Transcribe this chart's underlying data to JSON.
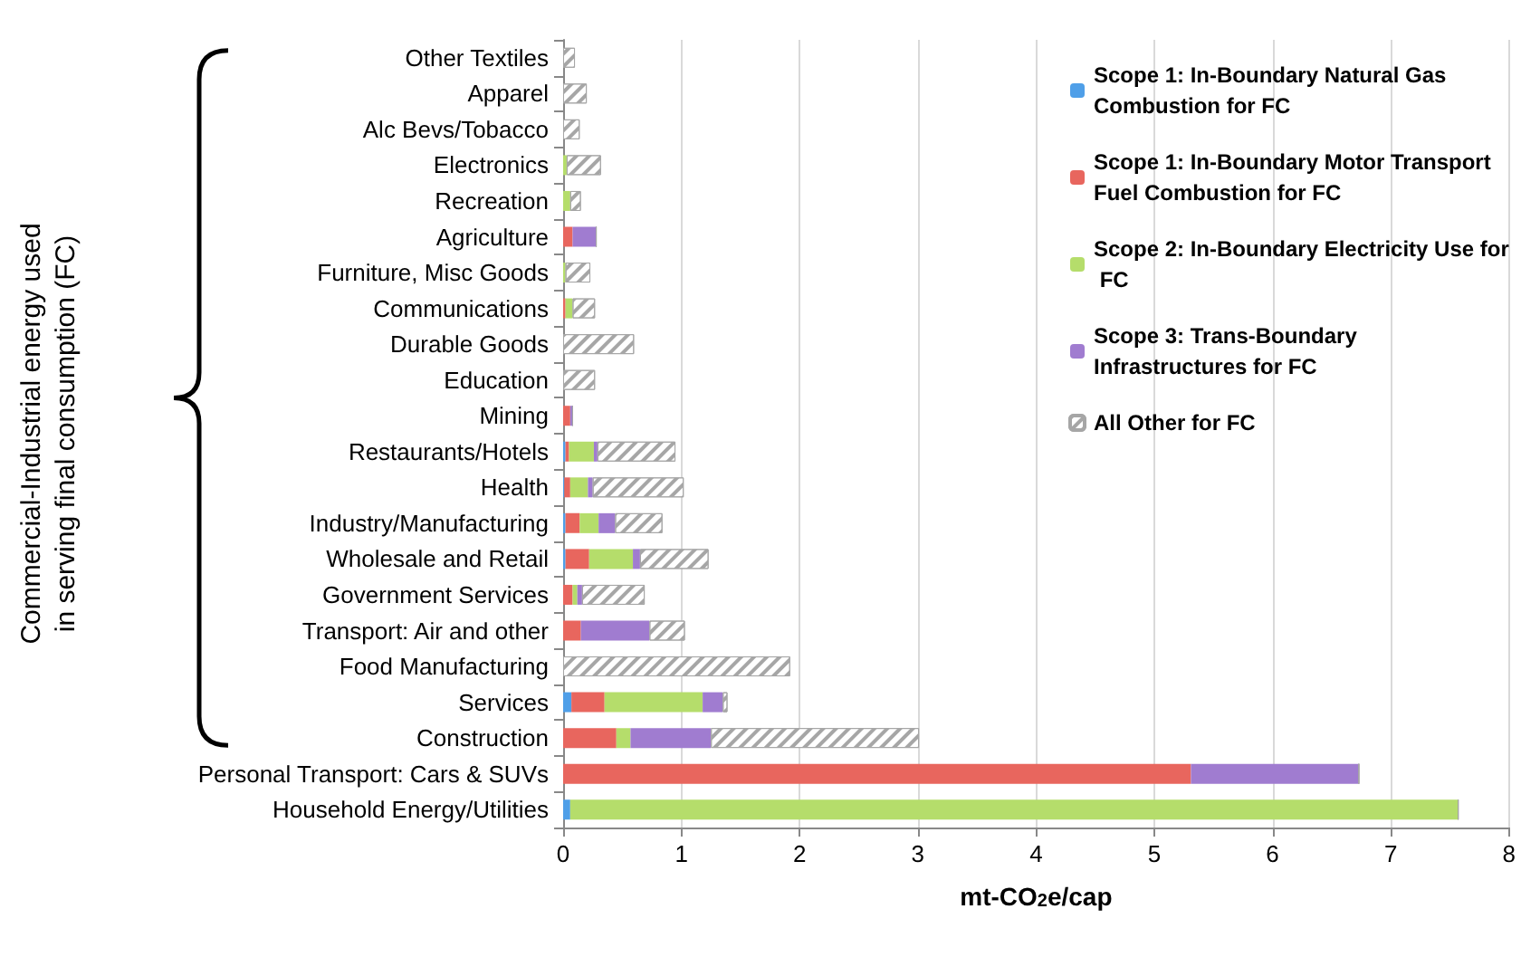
{
  "chart_data": {
    "type": "bar",
    "orientation": "horizontal",
    "stacked": true,
    "xlabel": "mt-CO$_{2}$e/cap",
    "ylabel": "Commercial-Industrial energy used in serving final consumption (FC)",
    "categories": [
      "Other Textiles",
      "Apparel",
      "Alc Bevs/Tobacco",
      "Electronics",
      "Recreation",
      "Agriculture",
      "Furniture, Misc Goods",
      "Communications",
      "Durable Goods",
      "Education",
      "Mining",
      "Restaurants/Hotels",
      "Health",
      "Industry/Manufacturing",
      "Wholesale and Retail",
      "Government Services",
      "Transport: Air and other",
      "Food Manufacturing",
      "Services",
      "Construction",
      "Personal Transport: Cars & SUVs",
      "Household Energy/Utilities"
    ],
    "series": [
      {
        "name": "Scope 1: In-Boundary Natural Gas Combustion for FC",
        "color": "#4f9fe8",
        "values": [
          0,
          0,
          0,
          0,
          0,
          0,
          0,
          0,
          0,
          0,
          0,
          0.02,
          0.01,
          0.02,
          0.02,
          0,
          0,
          0,
          0.07,
          0,
          0,
          0.06
        ]
      },
      {
        "name": "Scope 1: In-Boundary Motor Transport Fuel Combustion for FC",
        "color": "#e8665e",
        "values": [
          0,
          0,
          0,
          0,
          0,
          0.08,
          0,
          0.02,
          0,
          0,
          0.06,
          0.03,
          0.05,
          0.12,
          0.2,
          0.08,
          0.15,
          0,
          0.28,
          0.45,
          5.31,
          0
        ]
      },
      {
        "name": "Scope 2: In-Boundary Electricity Use for FC",
        "color": "#b5dd6b",
        "values": [
          0,
          0,
          0,
          0.03,
          0.06,
          0,
          0.02,
          0.06,
          0,
          0,
          0,
          0.21,
          0.15,
          0.16,
          0.37,
          0.04,
          0,
          0,
          0.83,
          0.12,
          0,
          7.51
        ]
      },
      {
        "name": "Scope 3: Trans-Boundary Infrastructures for FC",
        "color": "#a07cd0",
        "values": [
          0,
          0,
          0,
          0,
          0,
          0.2,
          0,
          0,
          0,
          0,
          0.02,
          0.03,
          0.04,
          0.14,
          0.06,
          0.04,
          0.58,
          0,
          0.17,
          0.68,
          1.42,
          null
        ]
      },
      {
        "name": "All Other for FC",
        "color": "#a6a6a6",
        "values": [
          0.1,
          0.2,
          0.14,
          0.29,
          0.09,
          0,
          0.21,
          0.19,
          0.6,
          0.27,
          0,
          0.66,
          0.77,
          0.4,
          0.58,
          0.53,
          0.3,
          1.92,
          0.04,
          1.76,
          0,
          0
        ]
      }
    ],
    "xlim": [
      0,
      8
    ],
    "xticks": [
      0,
      1,
      2,
      3,
      4,
      5,
      6,
      7,
      8
    ],
    "grid": "x",
    "legend": "top right"
  }
}
